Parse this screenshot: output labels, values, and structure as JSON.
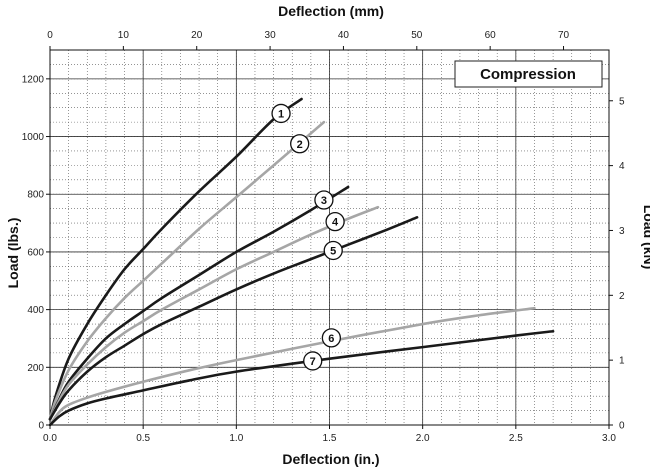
{
  "chart_data": {
    "type": "line",
    "title": "Compression",
    "xlabel": "Deflection (in.)",
    "ylabel": "Load (lbs.)",
    "x2label": "Deflection (mm)",
    "y2label": "Load (kN)",
    "xlim": [
      0,
      3.0
    ],
    "ylim": [
      0,
      1300
    ],
    "x2lim": [
      0,
      76.2
    ],
    "y2lim": [
      0,
      5.783
    ],
    "xticks": [
      "0.0",
      "0.5",
      "1.0",
      "1.5",
      "2.0",
      "2.5",
      "3.0"
    ],
    "xtick_values": [
      0,
      0.5,
      1.0,
      1.5,
      2.0,
      2.5,
      3.0
    ],
    "yticks": [
      "0",
      "200",
      "400",
      "600",
      "800",
      "1000",
      "1200"
    ],
    "ytick_values": [
      0,
      200,
      400,
      600,
      800,
      1000,
      1200
    ],
    "x2ticks": [
      "0",
      "10",
      "20",
      "30",
      "40",
      "50",
      "60",
      "70"
    ],
    "x2tick_values": [
      0,
      10,
      20,
      30,
      40,
      50,
      60,
      70
    ],
    "y2ticks": [
      "0",
      "1",
      "2",
      "3",
      "4",
      "5"
    ],
    "y2tick_values": [
      0,
      1,
      2,
      3,
      4,
      5
    ],
    "grid": true,
    "legend_position": "top-right",
    "colors": {
      "dark": "#1a1a1a",
      "light": "#a6a6a6"
    },
    "series": [
      {
        "name": "1",
        "color": "dark",
        "label_at": [
          1.24,
          1080
        ],
        "x": [
          0,
          0.03,
          0.1,
          0.2,
          0.3,
          0.4,
          0.5,
          0.6,
          0.8,
          1.0,
          1.2,
          1.35
        ],
        "y": [
          20,
          100,
          230,
          350,
          450,
          540,
          610,
          680,
          810,
          930,
          1060,
          1130
        ]
      },
      {
        "name": "2",
        "color": "light",
        "label_at": [
          1.34,
          975
        ],
        "x": [
          0,
          0.03,
          0.1,
          0.2,
          0.3,
          0.4,
          0.5,
          0.6,
          0.8,
          1.0,
          1.2,
          1.47
        ],
        "y": [
          20,
          85,
          190,
          290,
          370,
          440,
          500,
          560,
          680,
          790,
          900,
          1050
        ]
      },
      {
        "name": "3",
        "color": "dark",
        "label_at": [
          1.47,
          780
        ],
        "x": [
          0,
          0.05,
          0.1,
          0.2,
          0.3,
          0.4,
          0.5,
          0.6,
          0.8,
          1.0,
          1.2,
          1.4,
          1.6
        ],
        "y": [
          20,
          90,
          150,
          230,
          300,
          350,
          395,
          440,
          520,
          600,
          670,
          745,
          825
        ]
      },
      {
        "name": "4",
        "color": "light",
        "label_at": [
          1.53,
          705
        ],
        "x": [
          0,
          0.05,
          0.1,
          0.2,
          0.3,
          0.4,
          0.5,
          0.6,
          0.8,
          1.0,
          1.2,
          1.4,
          1.6,
          1.76
        ],
        "y": [
          20,
          85,
          140,
          210,
          270,
          320,
          360,
          400,
          470,
          540,
          600,
          660,
          715,
          755
        ]
      },
      {
        "name": "5",
        "color": "dark",
        "label_at": [
          1.52,
          605
        ],
        "x": [
          0,
          0.05,
          0.1,
          0.2,
          0.3,
          0.4,
          0.5,
          0.6,
          0.8,
          1.0,
          1.2,
          1.4,
          1.6,
          1.8,
          1.97
        ],
        "y": [
          20,
          75,
          120,
          185,
          235,
          275,
          315,
          350,
          410,
          470,
          525,
          575,
          625,
          675,
          720
        ]
      },
      {
        "name": "6",
        "color": "light",
        "label_at": [
          1.51,
          302
        ],
        "x": [
          0,
          0.05,
          0.1,
          0.2,
          0.3,
          0.5,
          0.75,
          1.0,
          1.5,
          2.0,
          2.3,
          2.6
        ],
        "y": [
          0,
          45,
          70,
          95,
          115,
          150,
          190,
          225,
          290,
          350,
          380,
          405
        ]
      },
      {
        "name": "7",
        "color": "dark",
        "label_at": [
          1.41,
          222
        ],
        "x": [
          0,
          0.05,
          0.1,
          0.2,
          0.3,
          0.5,
          0.75,
          1.0,
          1.5,
          2.0,
          2.5,
          2.7
        ],
        "y": [
          0,
          30,
          50,
          75,
          92,
          120,
          155,
          185,
          230,
          270,
          310,
          325
        ]
      }
    ]
  }
}
